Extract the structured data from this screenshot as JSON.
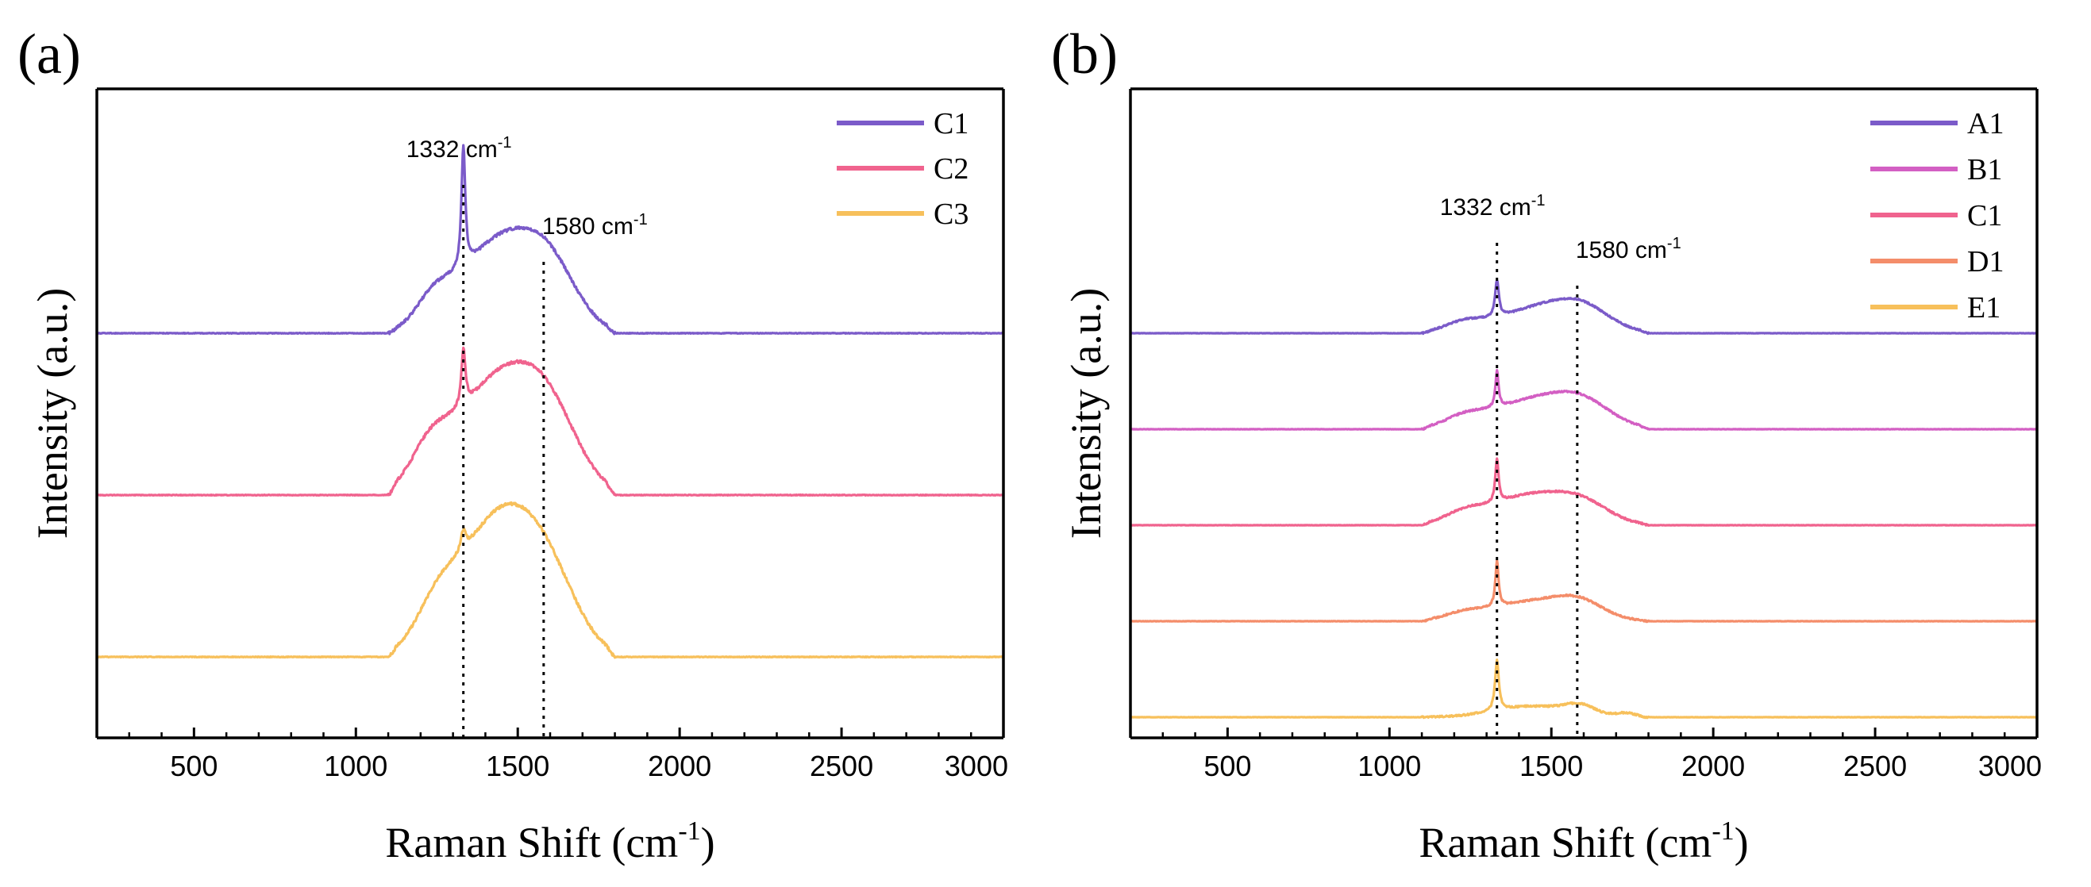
{
  "chart_data": [
    {
      "type": "line",
      "panel_label": "(a)",
      "xlabel": "Raman Shift (cm",
      "xlabel_sup": "-1",
      "xlabel_close": ")",
      "ylabel": "Intensity (a.u.)",
      "xlim": [
        200,
        3000
      ],
      "xticks": [
        "500",
        "1000",
        "1500",
        "2000",
        "2500",
        "3000"
      ],
      "x_minor_step": 100,
      "yticks_shown": false,
      "offset_step": 1,
      "legend_position": "top-right",
      "series": [
        {
          "name": "C1",
          "color": "#7b5bc9",
          "offset": 2
        },
        {
          "name": "C2",
          "color": "#f0638e",
          "offset": 1
        },
        {
          "name": "C3",
          "color": "#f7c05b",
          "offset": 0
        }
      ],
      "annotations": [
        {
          "text": "1332 cm",
          "sup": "-1",
          "x": 1332
        },
        {
          "text": "1580 cm",
          "sup": "-1",
          "x": 1580
        }
      ],
      "peaks": [
        {
          "x": 1332,
          "rel_height": 1.0
        },
        {
          "x": 1440,
          "rel_height": 0.68
        },
        {
          "x": 1580,
          "rel_height": 0.46
        }
      ]
    },
    {
      "type": "line",
      "panel_label": "(b)",
      "xlabel": "Raman Shift (cm",
      "xlabel_sup": "-1",
      "xlabel_close": ")",
      "ylabel": "Intensity (a.u.)",
      "xlim": [
        200,
        3000
      ],
      "xticks": [
        "500",
        "1000",
        "1500",
        "2000",
        "2500",
        "3000"
      ],
      "x_minor_step": 100,
      "yticks_shown": false,
      "offset_step": 1,
      "legend_position": "top-right",
      "series": [
        {
          "name": "A1",
          "color": "#7b5bc9",
          "offset": 4
        },
        {
          "name": "B1",
          "color": "#d35fc3",
          "offset": 3
        },
        {
          "name": "C1",
          "color": "#f0638e",
          "offset": 2
        },
        {
          "name": "D1",
          "color": "#f48d6a",
          "offset": 1
        },
        {
          "name": "E1",
          "color": "#f7c05b",
          "offset": 0
        }
      ],
      "annotations": [
        {
          "text": "1332 cm",
          "sup": "-1",
          "x": 1332
        },
        {
          "text": "1580 cm",
          "sup": "-1",
          "x": 1580
        }
      ],
      "peaks": [
        {
          "x": 1332,
          "rel_height": 1.0
        },
        {
          "x": 1450,
          "rel_height": 0.65
        },
        {
          "x": 1580,
          "rel_height": 0.55
        }
      ]
    }
  ]
}
